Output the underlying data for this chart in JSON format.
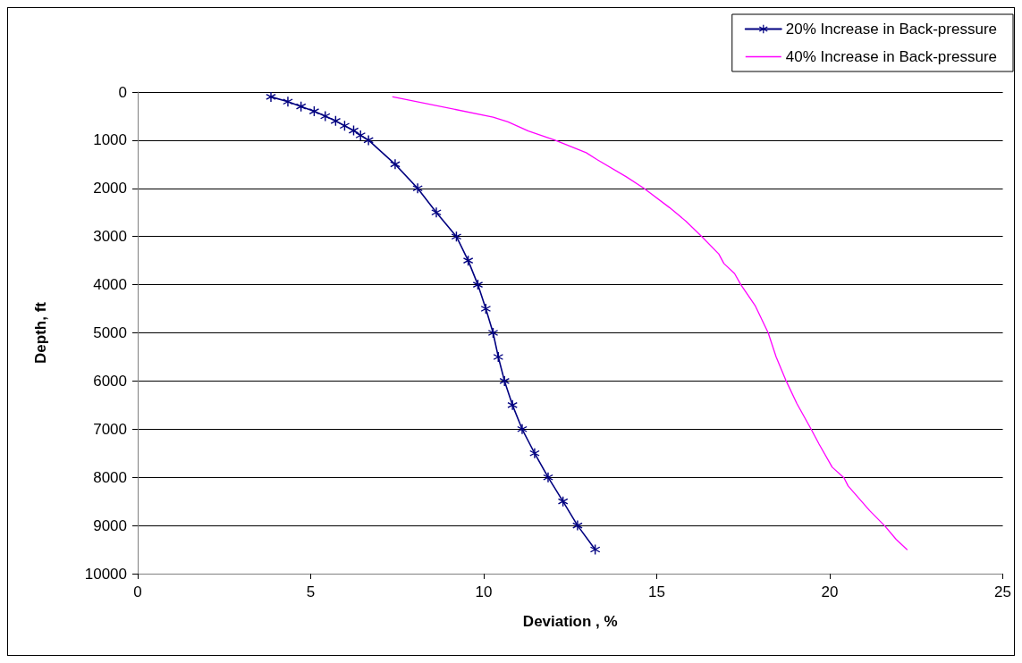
{
  "chart_data": {
    "type": "line",
    "xlabel": "Deviation , %",
    "ylabel": "Depth, ft",
    "xlim": [
      0,
      25
    ],
    "xticks": [
      0,
      5,
      10,
      15,
      20,
      25
    ],
    "ylim": [
      10000,
      0
    ],
    "yticks": [
      0,
      1000,
      2000,
      3000,
      4000,
      5000,
      6000,
      7000,
      8000,
      9000,
      10000
    ],
    "grid": "y",
    "legend": "top right",
    "line_style": "solid",
    "series": [
      {
        "name": "20% Increase in Back-pressure",
        "color": "#000080",
        "marker": "cross",
        "x": [
          3.85,
          4.34,
          4.72,
          5.1,
          5.42,
          5.72,
          5.98,
          6.24,
          6.44,
          6.67,
          7.44,
          8.09,
          8.63,
          9.21,
          9.55,
          9.83,
          10.06,
          10.27,
          10.42,
          10.6,
          10.83,
          11.11,
          11.47,
          11.86,
          12.29,
          12.71,
          13.22
        ],
        "values": [
          100,
          200,
          300,
          400,
          500,
          600,
          700,
          800,
          900,
          1000,
          1500,
          2000,
          2500,
          3000,
          3500,
          4000,
          4500,
          5000,
          5500,
          6000,
          6500,
          7000,
          7500,
          8000,
          8500,
          9000,
          9500
        ]
      },
      {
        "name": "40% Increase in Back-pressure",
        "color": "#ff00ff",
        "marker": "none",
        "x": [
          7.37,
          10.27,
          10.7,
          11.29,
          12.06,
          12.96,
          13.27,
          14.12,
          14.63,
          15.37,
          15.84,
          16.3,
          16.79,
          16.94,
          17.25,
          17.43,
          17.84,
          18.22,
          18.45,
          18.74,
          19.05,
          19.46,
          19.69,
          20.07,
          20.41,
          20.53,
          21.15,
          21.59,
          21.92,
          22.23
        ],
        "values": [
          100,
          520,
          620,
          810,
          1000,
          1260,
          1400,
          1760,
          2000,
          2400,
          2680,
          3000,
          3360,
          3560,
          3770,
          4000,
          4430,
          5000,
          5500,
          6000,
          6470,
          7000,
          7310,
          7790,
          8010,
          8180,
          8690,
          9010,
          9290,
          9500
        ]
      }
    ]
  }
}
